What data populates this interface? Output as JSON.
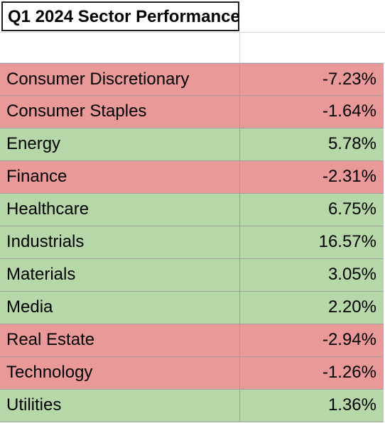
{
  "title": "Q1 2024 Sector Performance",
  "colors": {
    "negative_fill": "#ea9999",
    "positive_fill": "#b6d7a8"
  },
  "rows": [
    {
      "sector": "Consumer Discretionary",
      "value": "-7.23%",
      "status": "negative"
    },
    {
      "sector": "Consumer Staples",
      "value": "-1.64%",
      "status": "negative"
    },
    {
      "sector": "Energy",
      "value": "5.78%",
      "status": "positive"
    },
    {
      "sector": "Finance",
      "value": "-2.31%",
      "status": "negative"
    },
    {
      "sector": "Healthcare",
      "value": "6.75%",
      "status": "positive"
    },
    {
      "sector": "Industrials",
      "value": "16.57%",
      "status": "positive"
    },
    {
      "sector": "Materials",
      "value": "3.05%",
      "status": "positive"
    },
    {
      "sector": "Media",
      "value": "2.20%",
      "status": "positive"
    },
    {
      "sector": "Real Estate",
      "value": "-2.94%",
      "status": "negative"
    },
    {
      "sector": "Technology",
      "value": "-1.26%",
      "status": "negative"
    },
    {
      "sector": "Utilities",
      "value": "1.36%",
      "status": "positive"
    }
  ]
}
